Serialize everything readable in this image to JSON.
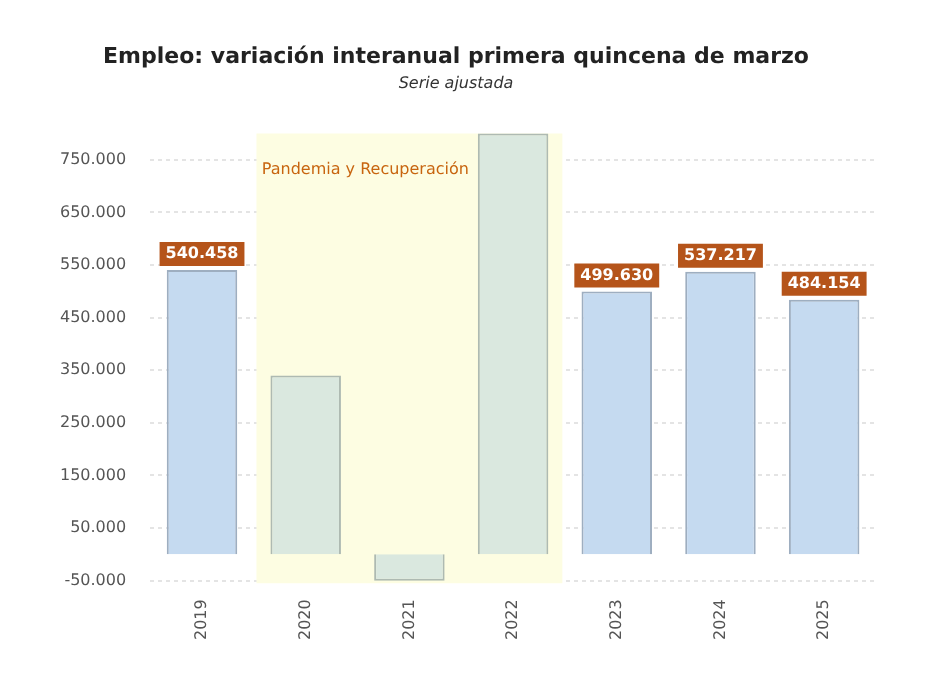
{
  "chart_data": {
    "type": "bar",
    "title": "Empleo: variación interanual primera quincena de marzo",
    "subtitle": "Serie ajustada",
    "categories": [
      "2019",
      "2020",
      "2021",
      "2022",
      "2023",
      "2024",
      "2025"
    ],
    "values": [
      540458,
      340000,
      -50000,
      800000,
      499630,
      537217,
      484154
    ],
    "colors": [
      "#c5daf0",
      "#dae8df",
      "#dae8df",
      "#dae8df",
      "#c5daf0",
      "#c5daf0",
      "#c5daf0"
    ],
    "value_labels": [
      "540.458",
      null,
      null,
      null,
      "499.630",
      "537.217",
      "484.154"
    ],
    "ylim": [
      -55000,
      800000
    ],
    "yticks": [
      {
        "value": -50000,
        "label": "-50.000"
      },
      {
        "value": 50000,
        "label": "50.000"
      },
      {
        "value": 150000,
        "label": "150.000"
      },
      {
        "value": 250000,
        "label": "250.000"
      },
      {
        "value": 350000,
        "label": "350.000"
      },
      {
        "value": 450000,
        "label": "450.000"
      },
      {
        "value": 550000,
        "label": "550.000"
      },
      {
        "value": 650000,
        "label": "650.000"
      },
      {
        "value": 750000,
        "label": "750.000"
      }
    ],
    "bands": [
      {
        "axis": "x",
        "from": "2020",
        "to": "2022",
        "label": "Pandemia y Recuperación",
        "color": "#fdfde2"
      }
    ],
    "grid": "y",
    "legend": false
  }
}
